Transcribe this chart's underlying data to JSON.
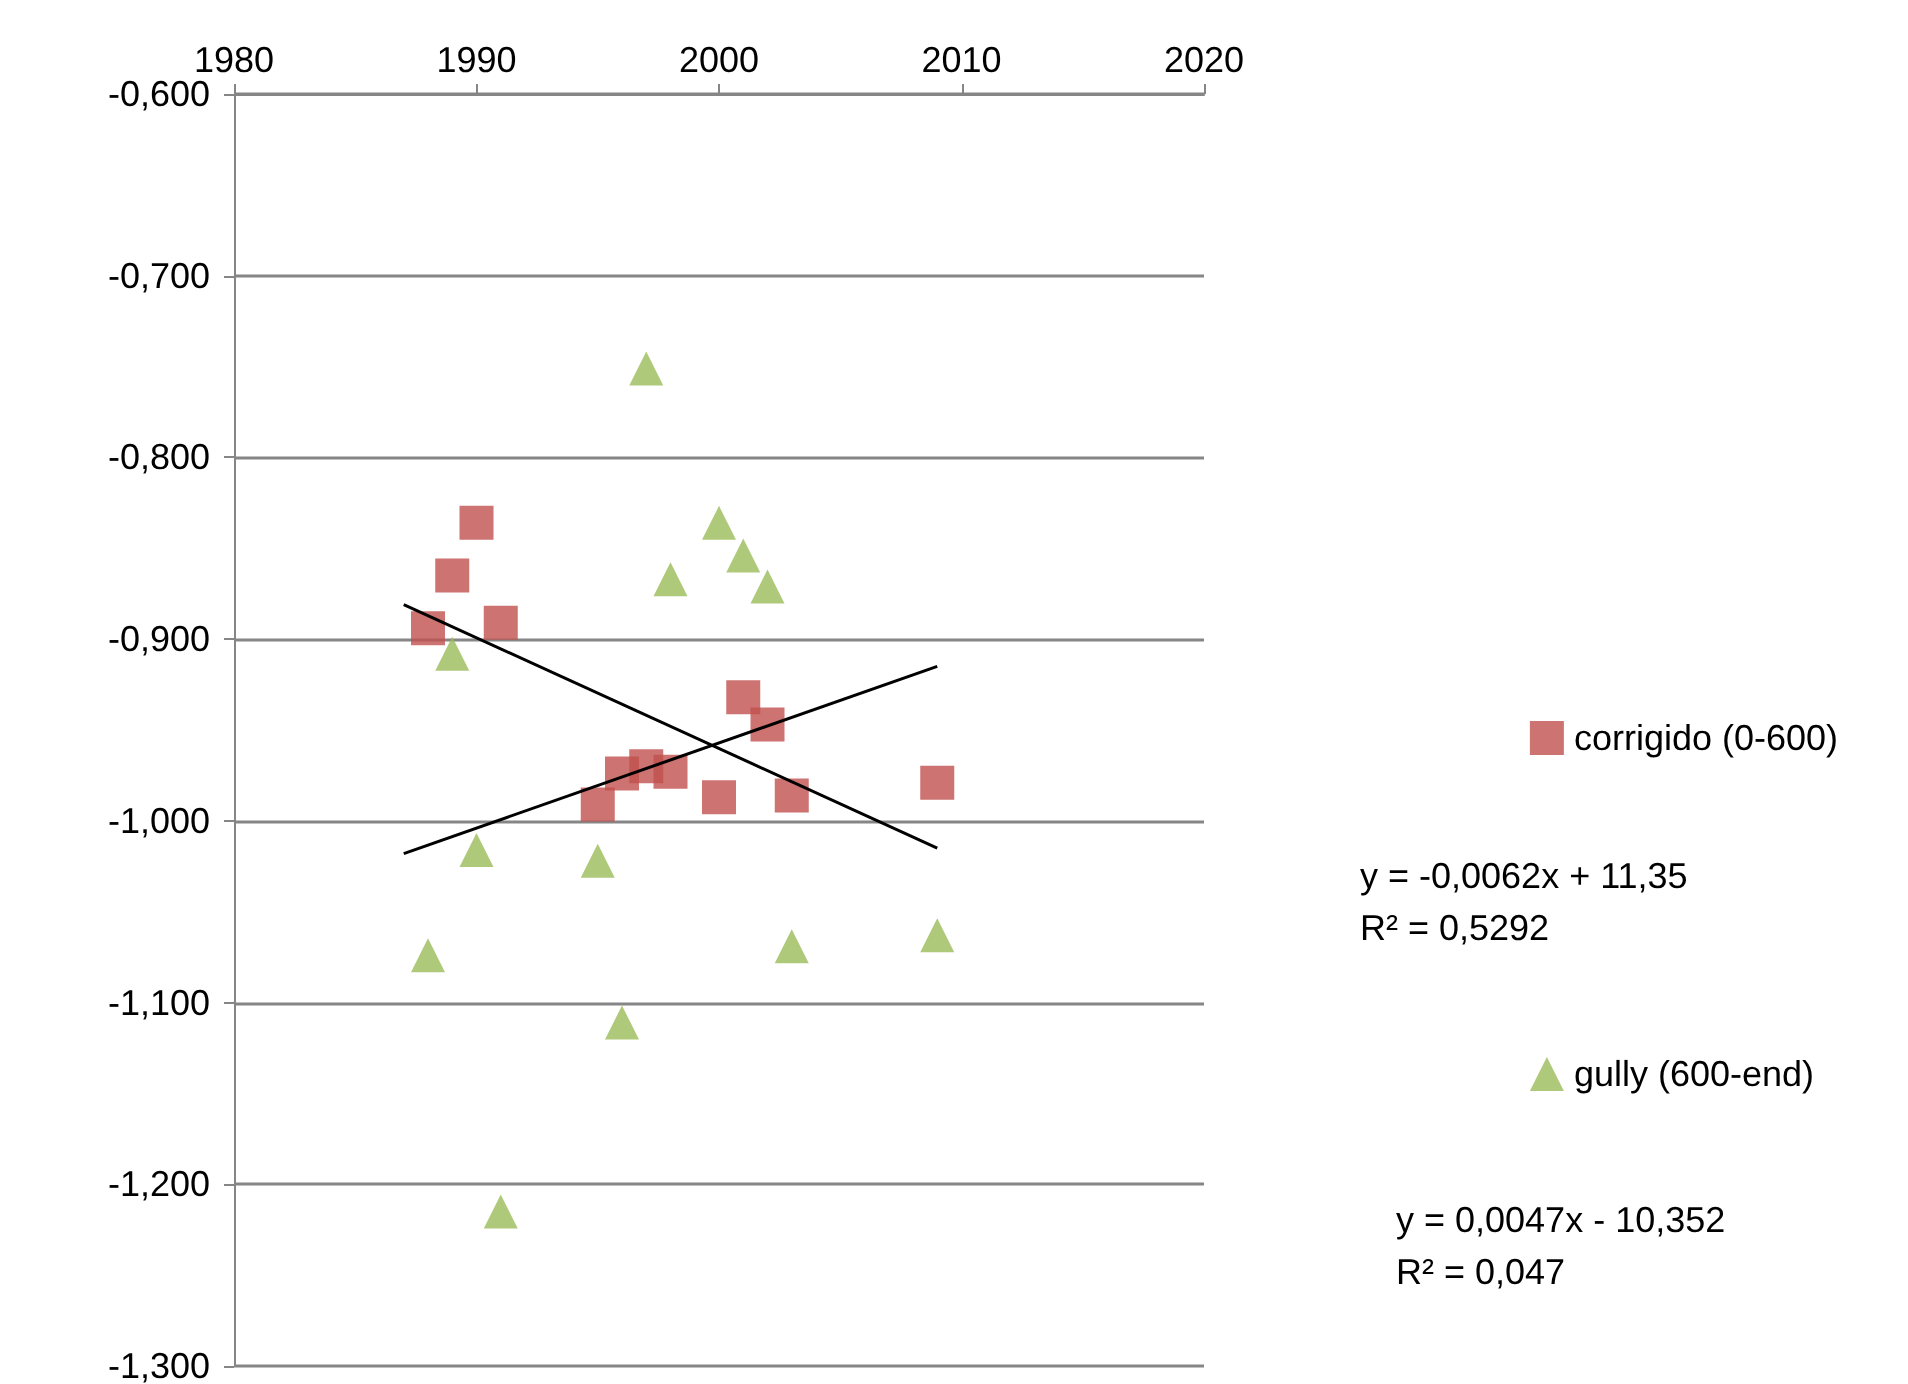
{
  "chart_data": {
    "type": "scatter",
    "xlim": [
      1980,
      2020
    ],
    "xticks": [
      1980,
      1990,
      2000,
      2010,
      2020
    ],
    "ylim": [
      -1.3,
      -0.6
    ],
    "yticks": [
      {
        "value": -1.3,
        "label": "-1,300"
      },
      {
        "value": -1.2,
        "label": "-1,200"
      },
      {
        "value": -1.1,
        "label": "-1,100"
      },
      {
        "value": -1.0,
        "label": "-1,000"
      },
      {
        "value": -0.9,
        "label": "-0,900"
      },
      {
        "value": -0.8,
        "label": "-0,800"
      },
      {
        "value": -0.7,
        "label": "-0,700"
      },
      {
        "value": -0.6,
        "label": "-0,600"
      }
    ],
    "grid": "y",
    "legend": "right",
    "series": [
      {
        "name": "corrigido (0-600)",
        "color": "#c0504d",
        "marker": "square",
        "x": [
          1988,
          1989,
          1990,
          1991,
          1995,
          1996,
          1997,
          1998,
          2000,
          2001,
          2002,
          2003,
          2009
        ],
        "values": [
          -0.894,
          -0.865,
          -0.836,
          -0.891,
          -0.991,
          -0.974,
          -0.97,
          -0.973,
          -0.987,
          -0.932,
          -0.947,
          -0.986,
          -0.979
        ]
      },
      {
        "name": "gully (600-end)",
        "color": "#9bbb59",
        "marker": "triangle",
        "x": [
          1988,
          1989,
          1990,
          1991,
          1995,
          1996,
          1997,
          1998,
          2000,
          2001,
          2002,
          2003,
          2009
        ],
        "values": [
          -1.074,
          -0.908,
          -1.016,
          -1.215,
          -1.022,
          -1.111,
          -0.751,
          -0.867,
          -0.836,
          -0.854,
          -0.871,
          -1.069,
          -1.063
        ]
      },
      {
        "type": "line",
        "color": "#000000",
        "marker": "none",
        "x": [
          1987,
          2009
        ],
        "values": [
          -0.881,
          -1.015
        ]
      },
      {
        "type": "line",
        "color": "#000000",
        "marker": "none",
        "x": [
          1987,
          2009
        ],
        "values": [
          -1.018,
          -0.915
        ]
      }
    ],
    "annotations": [
      "y = -0,0062x + 11,35\nR² = 0,5292",
      "y = 0,0047x - 10,352\nR² = 0,047"
    ]
  }
}
